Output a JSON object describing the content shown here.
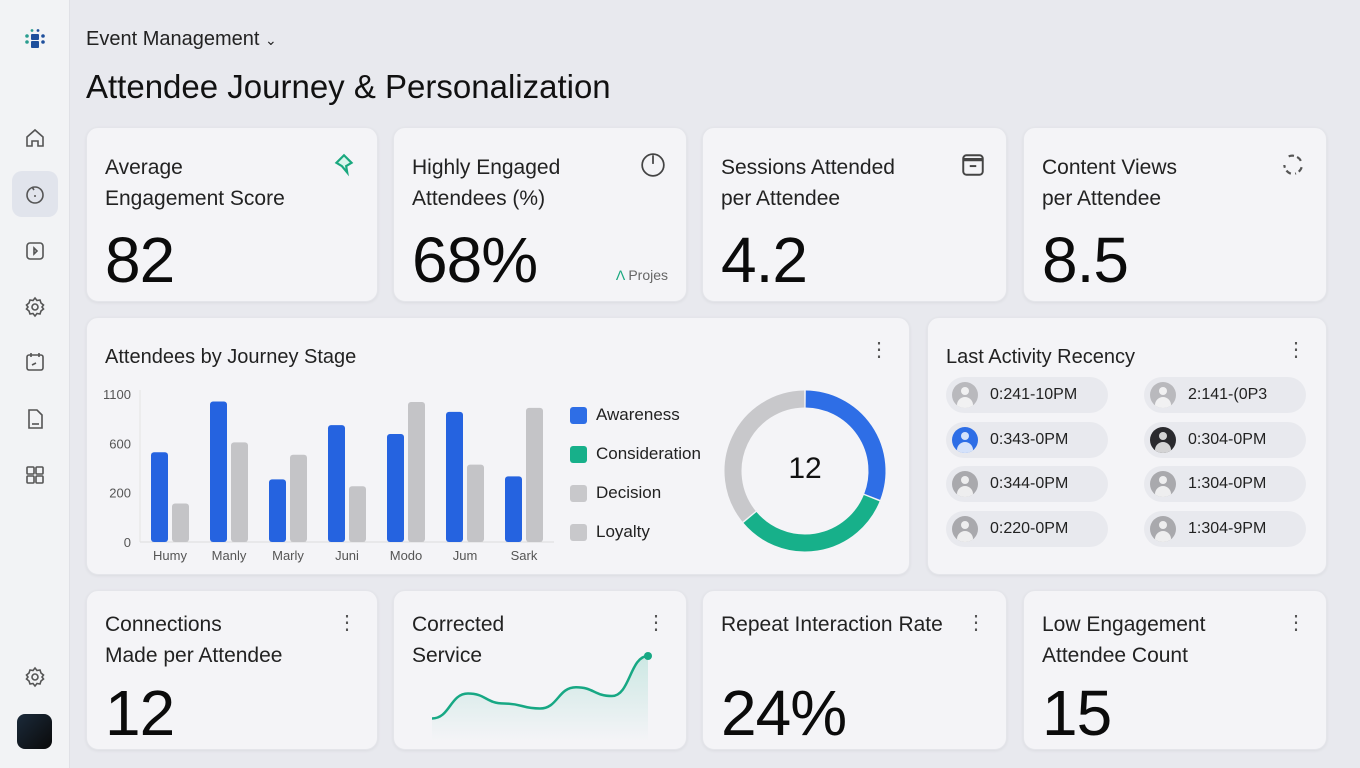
{
  "header": {
    "breadcrumb": "Event Management",
    "title": "Attendee Journey & Personalization"
  },
  "sidebar": {
    "items": [
      "logo-icon",
      "home-icon",
      "engagement-icon",
      "play-icon",
      "settings-icon",
      "calendar-icon",
      "document-icon",
      "grid-icon"
    ],
    "bottom": [
      "settings-icon",
      "avatar"
    ]
  },
  "kpis": [
    {
      "title": "Average\nEngagement Score",
      "value": "82",
      "icon": "diamond-icon"
    },
    {
      "title": "Highly Engaged\nAttendees (%)",
      "value": "68%",
      "icon": "power-icon",
      "note": "Projes"
    },
    {
      "title": "Sessions Attended\nper Attendee",
      "value": "4.2",
      "icon": "window-icon"
    },
    {
      "title": "Content Views\nper Attendee",
      "value": "8.5",
      "icon": "refresh-icon"
    }
  ],
  "chart_data": {
    "type": "bar",
    "title": "Attendees by Journey Stage",
    "categories": [
      "Humy",
      "Manly",
      "Marly",
      "Juni",
      "Modo",
      "Jum",
      "Sark"
    ],
    "yticks": [
      "0",
      "200",
      "600",
      "1100"
    ],
    "series": [
      {
        "color": "#2563e0",
        "values": [
          528,
          1025,
          308,
          785,
          695,
          920,
          332
        ]
      },
      {
        "color": "#c4c4c7",
        "values": [
          156,
          610,
          508,
          252,
          1020,
          428,
          960
        ]
      }
    ],
    "legend": [
      {
        "name": "Awareness",
        "color": "#2e6ee6"
      },
      {
        "name": "Consideration",
        "color": "#17b08a"
      },
      {
        "name": "Decision",
        "color": "#c8c8cb"
      },
      {
        "name": "Loyalty",
        "color": "#c8c8cb"
      }
    ],
    "donut": {
      "center": "12",
      "segments": [
        {
          "color": "#2e6ee6",
          "value": 31
        },
        {
          "color": "#17b08a",
          "value": 33
        },
        {
          "color": "#c8c8cb",
          "value": 36
        }
      ]
    }
  },
  "recency": {
    "title": "Last Activity Recency",
    "items": [
      {
        "time": "0:241-10PM",
        "avatar": "#b9b9bd"
      },
      {
        "time": "2:141-(0P3",
        "avatar": "#b9b9bd"
      },
      {
        "time": "0:343-0PM",
        "avatar": "#2e6ee6"
      },
      {
        "time": "0:304-0PM",
        "avatar": "#2a2a2e"
      },
      {
        "time": "0:344-0PM",
        "avatar": "#a9a9ad"
      },
      {
        "time": "1:304-0PM",
        "avatar": "#a9a9ad"
      },
      {
        "time": "0:220-0PM",
        "avatar": "#a9a9ad"
      },
      {
        "time": "1:304-9PM",
        "avatar": "#a9a9ad"
      }
    ]
  },
  "bottom": [
    {
      "title": "Connections\nMade per Attendee",
      "value": "12"
    },
    {
      "title": "Corrected\nService",
      "sparkline": [
        10,
        30,
        22,
        18,
        35,
        28,
        60
      ]
    },
    {
      "title": "Repeat Interaction Rate",
      "value": "24%"
    },
    {
      "title": "Low Engagement\nAttendee Count",
      "value": "15"
    }
  ]
}
